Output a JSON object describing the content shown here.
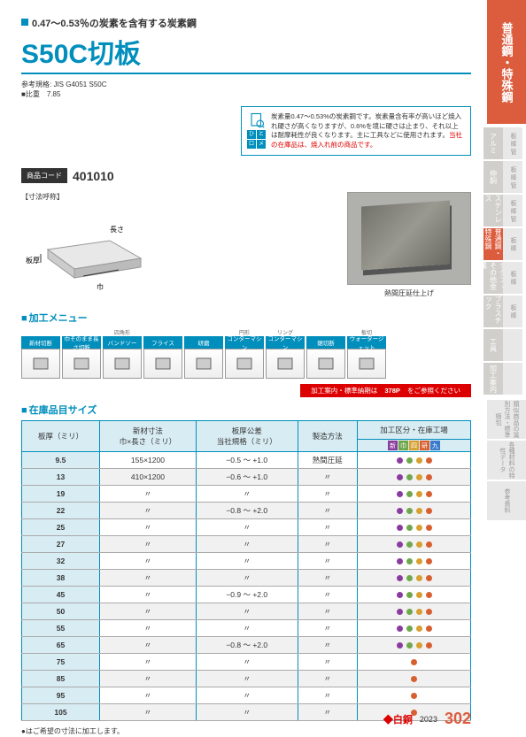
{
  "header": {
    "subtitle": "0.47〜0.53％の炭素を含有する炭素鋼",
    "title": "S50C切板",
    "spec1_label": "参考規格",
    "spec1_value": "JIS G4051 S50C",
    "spec2_label": "比重",
    "spec2_value": "7.85"
  },
  "memo": {
    "text1": "炭素量0.47〜0.53%の炭素鋼です。炭素量含有率が高いほど焼入れ硬さが高くなりますが、0.6%を境に硬さは止まり、それ以上は耐摩耗性が良くなります。主に工具などに使用されます。",
    "warn": "当社の在庫品は、焼入れ前の商品です。",
    "icon_tags": [
      "ひ",
      "と",
      "口",
      "メ",
      "モ"
    ]
  },
  "product_code": {
    "label": "商品コード",
    "value": "401010"
  },
  "dimension": {
    "title": "【寸法呼称】",
    "labels": {
      "length": "長さ",
      "thickness": "板厚",
      "width": "巾"
    }
  },
  "photo_caption": "熱間圧延仕上げ",
  "sections": {
    "processing": "加工メニュー",
    "stock": "在庫品目サイズ"
  },
  "processing": {
    "items": [
      {
        "group": "",
        "label": "新材切断"
      },
      {
        "group": "",
        "label": "巾そのまま長さ切断"
      },
      {
        "group": "四角形",
        "label": "バンドソー"
      },
      {
        "group": "",
        "label": "フライス"
      },
      {
        "group": "",
        "label": "研磨"
      },
      {
        "group": "円形",
        "label": "コンターマシン"
      },
      {
        "group": "リング",
        "label": "コンターマシン"
      },
      {
        "group": "",
        "label": "鋸切断"
      },
      {
        "group": "板切",
        "label": "ウォータージェット"
      }
    ]
  },
  "note_bar": {
    "prefix": "加工案内・標準納期は",
    "page": "378P",
    "suffix": "をご参照ください"
  },
  "table": {
    "columns": [
      "板厚（ミリ）",
      "新材寸法\n巾×長さ（ミリ）",
      "板厚公差\n当社規格（ミリ）",
      "製造方法",
      "加工区分・在庫工場"
    ],
    "kouku_labels": [
      "新",
      "巾",
      "四",
      "研",
      "九"
    ],
    "kouku_colors": [
      "#8a3c9e",
      "#6fa84c",
      "#d8a030",
      "#d86030",
      "#3a7acc"
    ],
    "rows": [
      {
        "t": "9.5",
        "dim": "155×1200",
        "tol": "−0.5 〜 +1.0",
        "method": "熱間圧延",
        "dots": [
          1,
          2,
          3,
          4
        ]
      },
      {
        "t": "13",
        "dim": "410×1200",
        "tol": "−0.6 〜 +1.0",
        "method": "〃",
        "dots": [
          1,
          2,
          3,
          4
        ]
      },
      {
        "t": "19",
        "dim": "〃",
        "tol": "〃",
        "method": "〃",
        "dots": [
          1,
          2,
          3,
          4
        ]
      },
      {
        "t": "22",
        "dim": "〃",
        "tol": "−0.8 〜 +2.0",
        "method": "〃",
        "dots": [
          1,
          2,
          3,
          4
        ]
      },
      {
        "t": "25",
        "dim": "〃",
        "tol": "〃",
        "method": "〃",
        "dots": [
          1,
          2,
          3,
          4
        ]
      },
      {
        "t": "27",
        "dim": "〃",
        "tol": "〃",
        "method": "〃",
        "dots": [
          1,
          2,
          3,
          4
        ]
      },
      {
        "t": "32",
        "dim": "〃",
        "tol": "〃",
        "method": "〃",
        "dots": [
          1,
          2,
          3,
          4
        ]
      },
      {
        "t": "38",
        "dim": "〃",
        "tol": "〃",
        "method": "〃",
        "dots": [
          1,
          2,
          3,
          4
        ]
      },
      {
        "t": "45",
        "dim": "〃",
        "tol": "−0.9 〜 +2.0",
        "method": "〃",
        "dots": [
          1,
          2,
          3,
          4
        ]
      },
      {
        "t": "50",
        "dim": "〃",
        "tol": "〃",
        "method": "〃",
        "dots": [
          1,
          2,
          3,
          4
        ]
      },
      {
        "t": "55",
        "dim": "〃",
        "tol": "〃",
        "method": "〃",
        "dots": [
          1,
          2,
          3,
          4
        ]
      },
      {
        "t": "65",
        "dim": "〃",
        "tol": "−0.8 〜 +2.0",
        "method": "〃",
        "dots": [
          1,
          2,
          3,
          4
        ]
      },
      {
        "t": "75",
        "dim": "〃",
        "tol": "〃",
        "method": "〃",
        "dots": [
          4
        ]
      },
      {
        "t": "85",
        "dim": "〃",
        "tol": "〃",
        "method": "〃",
        "dots": [
          4
        ]
      },
      {
        "t": "95",
        "dim": "〃",
        "tol": "〃",
        "method": "〃",
        "dots": [
          4
        ]
      },
      {
        "t": "105",
        "dim": "〃",
        "tol": "〃",
        "method": "〃",
        "dots": [
          4
        ]
      }
    ],
    "note": "●はご希望の寸法に加工します。"
  },
  "sidebar": {
    "category": "普通鋼・特殊鋼",
    "tabs": [
      {
        "l": "アルミ",
        "r": "板 棒 管"
      },
      {
        "l": "伸銅",
        "r": "板 棒 管"
      },
      {
        "l": "ステンレス",
        "r": "板 棒 管"
      },
      {
        "l": "普通鋼・特殊鋼",
        "r": "板 棒",
        "active": true
      },
      {
        "l": "チタン・その他金属",
        "r": "板 棒"
      },
      {
        "l": "プラスチック",
        "r": "板 棒"
      },
      {
        "l": "工具",
        "r": ""
      },
      {
        "l": "加工案内",
        "r": ""
      }
    ],
    "info": [
      "類似商品の識別方法・標準梱包",
      "各種材料の特性データ",
      "参考資料"
    ]
  },
  "footer": {
    "brand": "白銅",
    "year": "2023",
    "page": "302"
  }
}
